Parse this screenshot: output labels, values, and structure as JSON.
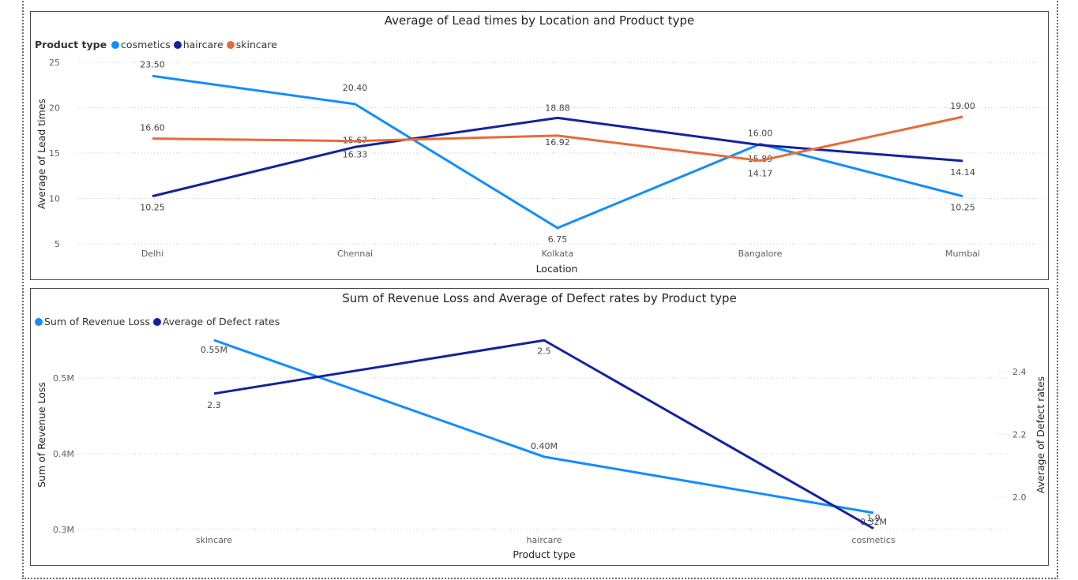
{
  "chart_data": [
    {
      "type": "line",
      "title": "Average of Lead times by Location and Product type",
      "legend_title": "Product type",
      "xlabel": "Location",
      "ylabel": "Average of Lead times",
      "categories": [
        "Delhi",
        "Chennai",
        "Kolkata",
        "Bangalore",
        "Mumbai"
      ],
      "ylim": [
        5,
        25
      ],
      "yticks": [
        5,
        10,
        15,
        20,
        25
      ],
      "grid": true,
      "legend_position": "top-left",
      "series": [
        {
          "name": "cosmetics",
          "color": "#118DFF",
          "values": [
            23.5,
            20.4,
            6.75,
            16.0,
            10.25
          ],
          "labels": [
            "23.50",
            "20.40",
            "6.75",
            "16.00",
            "10.25"
          ]
        },
        {
          "name": "haircare",
          "color": "#12239E",
          "values": [
            10.25,
            15.67,
            18.88,
            15.89,
            14.14
          ],
          "labels": [
            "10.25",
            "15.67",
            "18.88",
            "15.89",
            "14.14"
          ]
        },
        {
          "name": "skincare",
          "color": "#E66C37",
          "values": [
            16.6,
            16.33,
            16.92,
            14.17,
            19.0
          ],
          "labels": [
            "16.60",
            "16.33",
            "16.92",
            "14.17",
            "19.00"
          ]
        }
      ]
    },
    {
      "type": "line",
      "title": "Sum of Revenue Loss and Average of Defect rates by Product type",
      "xlabel": "Product type",
      "ylabel": "Sum of Revenue Loss",
      "ylabel_right": "Average of Defect rates",
      "categories": [
        "skincare",
        "haircare",
        "cosmetics"
      ],
      "ylim": [
        0.3,
        0.55
      ],
      "yticks": [
        0.3,
        0.4,
        0.5
      ],
      "ytick_labels": [
        "0.3M",
        "0.4M",
        "0.5M"
      ],
      "ylim_right": [
        1.9,
        2.5
      ],
      "yticks_right": [
        2.0,
        2.2,
        2.4
      ],
      "ytick_labels_right": [
        "2.0",
        "2.2",
        "2.4"
      ],
      "grid": true,
      "legend_position": "top-left",
      "series": [
        {
          "name": "Sum of Revenue Loss",
          "axis": "left",
          "color": "#118DFF",
          "values": [
            0.55,
            0.396,
            0.322
          ],
          "labels": [
            "0.55M",
            "0.40M",
            "0.32M"
          ]
        },
        {
          "name": "Average of Defect rates",
          "axis": "right",
          "color": "#12239E",
          "values": [
            2.33,
            2.5,
            1.9
          ],
          "labels": [
            "2.3",
            "2.5",
            "1.9"
          ]
        }
      ]
    }
  ]
}
